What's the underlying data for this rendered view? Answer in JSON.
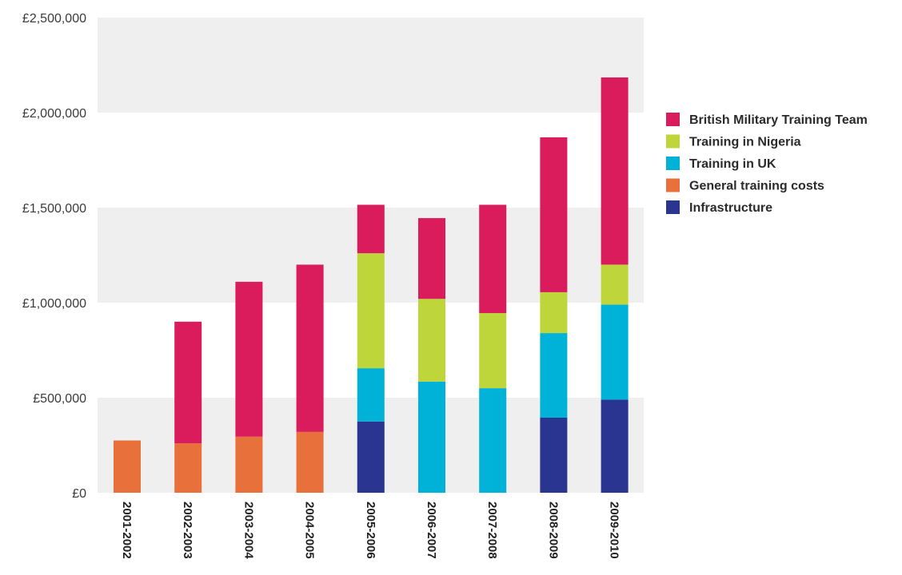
{
  "chart_data": {
    "type": "bar",
    "stacked": true,
    "title": "",
    "xlabel": "",
    "ylabel": "",
    "ylim": [
      0,
      2500000
    ],
    "y_ticks": [
      {
        "value": 0,
        "label": "£0"
      },
      {
        "value": 500000,
        "label": "£500,000"
      },
      {
        "value": 1000000,
        "label": "£1,000,000"
      },
      {
        "value": 1500000,
        "label": "£1,500,000"
      },
      {
        "value": 2000000,
        "label": "£2,000,000"
      },
      {
        "value": 2500000,
        "label": "£2,500,000"
      }
    ],
    "grid": "alternating horizontal bands",
    "legend_position": "right",
    "categories": [
      "2001-2002",
      "2002-2003",
      "2003-2004",
      "2004-2005",
      "2005-2006",
      "2006-2007",
      "2007-2008",
      "2008-2009",
      "2009-2010"
    ],
    "series": [
      {
        "name": "Infrastructure",
        "color": "#293591",
        "values": [
          0,
          0,
          0,
          0,
          375000,
          0,
          0,
          395000,
          490000
        ]
      },
      {
        "name": "General training costs",
        "color": "#e8703a",
        "values": [
          275000,
          260000,
          295000,
          320000,
          0,
          0,
          0,
          0,
          0
        ]
      },
      {
        "name": "Training in UK",
        "color": "#00b2d8",
        "values": [
          0,
          0,
          0,
          0,
          280000,
          585000,
          550000,
          445000,
          500000
        ]
      },
      {
        "name": "Training in Nigeria",
        "color": "#bed63a",
        "values": [
          0,
          0,
          0,
          0,
          605000,
          435000,
          395000,
          215000,
          210000
        ]
      },
      {
        "name": "British Military Training Team",
        "color": "#da1c5c",
        "values": [
          0,
          640000,
          815000,
          880000,
          255000,
          425000,
          570000,
          815000,
          985000
        ]
      }
    ],
    "legend_order": [
      "British Military Training Team",
      "Training in Nigeria",
      "Training in UK",
      "General training costs",
      "Infrastructure"
    ]
  }
}
